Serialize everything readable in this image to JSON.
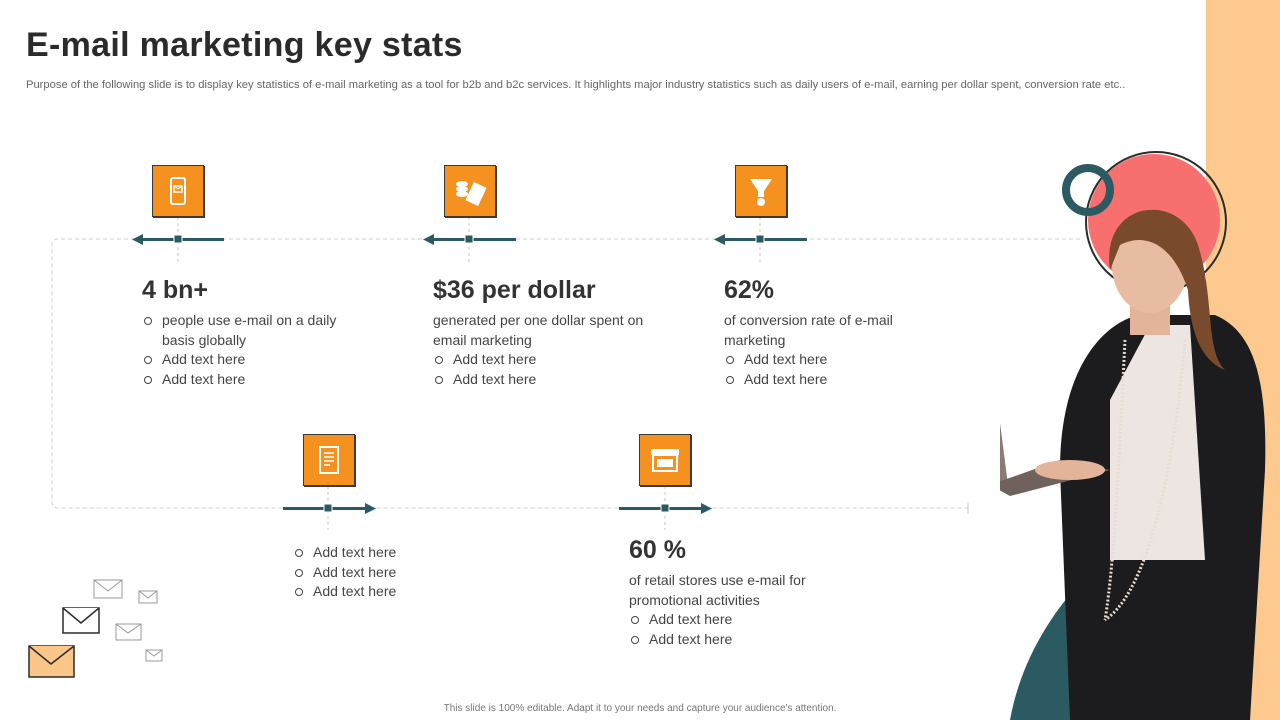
{
  "slide": {
    "title": "E-mail marketing key stats",
    "subtitle": "Purpose of the following slide is to display key statistics of e-mail marketing as a tool for b2b and b2c services. It highlights major industry statistics such as daily users of e-mail, earning per dollar spent, conversion rate etc..",
    "footer": "This slide is 100% editable. Adapt it to your needs and capture your audience's attention."
  },
  "stats": [
    {
      "icon": "smartphone-email-icon",
      "value": "4 bn+",
      "bullets": [
        "people use e-mail on a daily basis globally",
        "Add text here",
        "Add text here"
      ]
    },
    {
      "icon": "money-coins-icon",
      "value": "$36 per dollar",
      "description": "generated per one dollar spent on email marketing",
      "bullets": [
        "Add text here",
        "Add text here"
      ]
    },
    {
      "icon": "conversion-funnel-icon",
      "value": "62%",
      "description": "of conversion rate of e-mail marketing",
      "bullets": [
        "Add text here",
        "Add text here"
      ]
    },
    {
      "icon": "document-report-icon",
      "bullets": [
        "Add text here",
        "Add text here",
        "Add text here"
      ]
    },
    {
      "icon": "retail-store-icon",
      "value": "60 %",
      "description": "of retail stores use e-mail for promotional activities",
      "bullets": [
        "Add text here",
        "Add text here"
      ]
    }
  ],
  "colors": {
    "accent": "#f5911e",
    "teal": "#2b5a63",
    "peach": "#fdc98e",
    "coral": "#f76f6f"
  }
}
